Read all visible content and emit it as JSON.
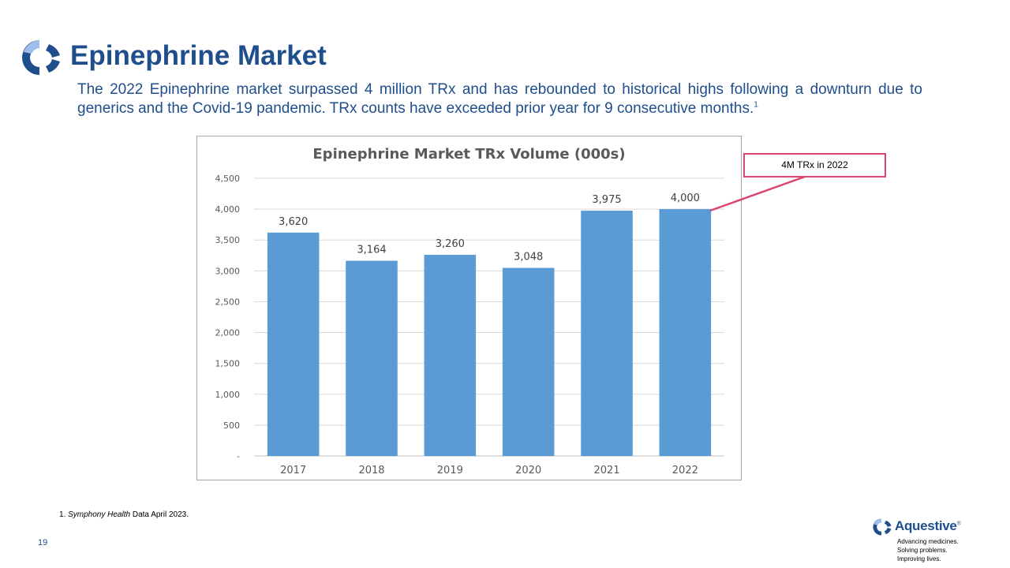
{
  "slide": {
    "title": "Epinephrine Market",
    "intro": "The 2022 Epinephrine market surpassed 4 million TRx and has rebounded to historical highs following a downturn due to generics and the Covid-19 pandemic.  TRx counts have exceeded prior year for 9 consecutive months.",
    "intro_footnote_ref": "1",
    "footnote_number": "1.",
    "footnote_source": "Symphony Health",
    "footnote_rest": "Data April 2023.",
    "page_number": "19"
  },
  "callout": {
    "text": "4M TRx in 2022",
    "color": "#d9466e"
  },
  "brand": {
    "name": "Aquestive",
    "trademark": "®",
    "tagline": [
      "Advancing medicines.",
      "Solving problems.",
      "Improving lives."
    ],
    "primary_color": "#1f4e8c",
    "secondary_color": "#6a8fd0"
  },
  "chart_data": {
    "type": "bar",
    "title": "Epinephrine Market TRx Volume (000s)",
    "categories": [
      "2017",
      "2018",
      "2019",
      "2020",
      "2021",
      "2022"
    ],
    "values": [
      3620,
      3164,
      3260,
      3048,
      3975,
      4000
    ],
    "value_labels": [
      "3,620",
      "3,164",
      "3,260",
      "3,048",
      "3,975",
      "4,000"
    ],
    "ylim": [
      0,
      4500
    ],
    "yticks": [
      0,
      500,
      1000,
      1500,
      2000,
      2500,
      3000,
      3500,
      4000,
      4500
    ],
    "ytick_labels": [
      "-",
      "500",
      "1,000",
      "1,500",
      "2,000",
      "2,500",
      "3,000",
      "3,500",
      "4,000",
      "4,500"
    ],
    "grid": true,
    "bar_color": "#5b9bd5",
    "xlabel": "",
    "ylabel": ""
  }
}
